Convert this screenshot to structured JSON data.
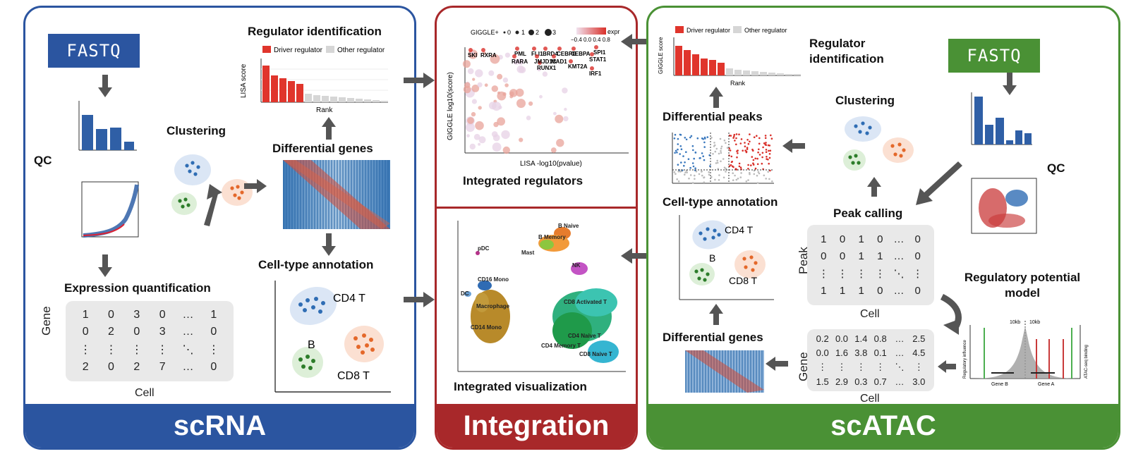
{
  "colors": {
    "scrna": "#2b55a0",
    "integration": "#a8282a",
    "scatac": "#4a9135",
    "arrow": "#555555",
    "driver": "#e0352c",
    "other": "#d6d6d6",
    "matrix_bg": "#e9e9e9"
  },
  "scrna": {
    "footer": "scRNA",
    "fastq": "FASTQ",
    "qc": "QC",
    "clustering": "Clustering",
    "regulator_identification": "Regulator identification",
    "legend_driver": "Driver regulator",
    "legend_other": "Other regulator",
    "lisa_score": "LISA score",
    "rank": "Rank",
    "differential_genes": "Differential genes",
    "cell_type_annotation": "Cell-type annotation",
    "expression_quantification": "Expression quantification",
    "matrix_row_label": "Gene",
    "matrix_col_label": "Cell",
    "matrix_rows": [
      [
        "1",
        "0",
        "3",
        "0",
        "…",
        "1"
      ],
      [
        "0",
        "2",
        "0",
        "3",
        "…",
        "0"
      ],
      [
        "⋮",
        "⋮",
        "⋮",
        "⋮",
        "⋱",
        "⋮"
      ],
      [
        "2",
        "0",
        "2",
        "7",
        "…",
        "0"
      ]
    ],
    "annotation": {
      "cd4": "CD4 T",
      "b": "B",
      "cd8": "CD8 T"
    }
  },
  "integration": {
    "footer": "Integration",
    "integrated_regulators": "Integrated regulators",
    "integrated_visualization": "Integrated visualization",
    "giggle_legend": "GIGGLE+",
    "expr_legend": "expr",
    "size_legend": [
      "0",
      "1",
      "2",
      "3"
    ],
    "expr_ticks": "−0.4 0.0 0.4 0.8",
    "xaxis": "LISA -log10(pvalue)",
    "yaxis": "GIGGLE log10(score)",
    "tfs": [
      "SKI",
      "RXRA",
      "PML",
      "RARA",
      "FLI1",
      "BRD4",
      "CEBPB",
      "CEBPA",
      "SPI1",
      "RUNX1",
      "JMJD1C",
      "MAD1",
      "STAT1",
      "KMT2A",
      "IRF1"
    ],
    "umap_labels": [
      "B Naive",
      "B Memory",
      "pDC",
      "Mast",
      "NK",
      "CD16 Mono",
      "DC",
      "Macrophage",
      "CD14 Mono",
      "CD8 Activated T",
      "CD4 Naive T",
      "CD4 Memory T",
      "CD8 Naive T"
    ]
  },
  "scatac": {
    "footer": "scATAC",
    "fastq": "FASTQ",
    "qc": "QC",
    "regulator_identification": "Regulator identification",
    "legend_driver": "Driver regulator",
    "legend_other": "Other regulator",
    "giggle_score": "GIGGLE score",
    "rank": "Rank",
    "clustering": "Clustering",
    "differential_peaks": "Differential peaks",
    "cell_type_annotation": "Cell-type annotation",
    "peak_calling": "Peak calling",
    "peak_row_label": "Peak",
    "peak_col_label": "Cell",
    "peak_rows": [
      [
        "1",
        "0",
        "1",
        "0",
        "…",
        "0"
      ],
      [
        "0",
        "0",
        "1",
        "1",
        "…",
        "0"
      ],
      [
        "⋮",
        "⋮",
        "⋮",
        "⋮",
        "⋱",
        "⋮"
      ],
      [
        "1",
        "1",
        "1",
        "0",
        "…",
        "0"
      ]
    ],
    "regulatory_potential_model": "Regulatory potential model",
    "differential_genes": "Differential genes",
    "gene_row_label": "Gene",
    "gene_col_label": "Cell",
    "gene_rows": [
      [
        "0.2",
        "0.0",
        "1.4",
        "0.8",
        "…",
        "2.5"
      ],
      [
        "0.0",
        "1.6",
        "3.8",
        "0.1",
        "…",
        "4.5"
      ],
      [
        "⋮",
        "⋮",
        "⋮",
        "⋮",
        "⋱",
        "⋮"
      ],
      [
        "1.5",
        "2.9",
        "0.3",
        "0.7",
        "…",
        "3.0"
      ]
    ],
    "rp_left_axis": "Regulatory influence",
    "rp_right_axis": "ATAC-seq binding",
    "rp_10kb_left": "10kb",
    "rp_10kb_right": "10kb",
    "rp_gene_b": "Gene B",
    "rp_gene_a": "Gene A",
    "annotation": {
      "cd4": "CD4 T",
      "b": "B",
      "cd8": "CD8 T"
    }
  }
}
